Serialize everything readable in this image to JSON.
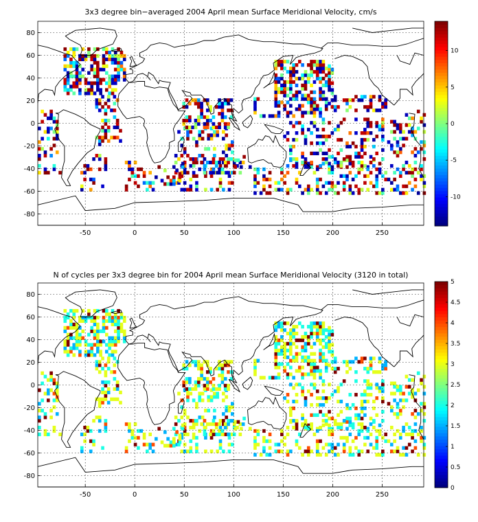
{
  "chart_data": [
    {
      "type": "heatmap",
      "title": "3x3 degree bin−averaged 2004 April mean Surface Meridional Velocity, cm/s",
      "x_ticks": [
        "-50",
        "0",
        "50",
        "100",
        "150",
        "200",
        "250"
      ],
      "y_ticks": [
        "80",
        "60",
        "40",
        "20",
        "0",
        "-20",
        "-40",
        "-60",
        "-80"
      ],
      "xlim": [
        -98,
        292
      ],
      "ylim": [
        -90,
        90
      ],
      "grid": true,
      "bin_size_deg": 3,
      "colorbar": {
        "range": [
          -14,
          14
        ],
        "ticks": [
          "10",
          "5",
          "0",
          "-5",
          "-10"
        ],
        "colormap": "jet"
      }
    },
    {
      "type": "heatmap",
      "title": "N of cycles per 3x3 degree bin for 2004 April mean Surface Meridional Velocity (3120 in total)",
      "x_ticks": [
        "-50",
        "0",
        "50",
        "100",
        "150",
        "200",
        "250"
      ],
      "y_ticks": [
        "80",
        "60",
        "40",
        "20",
        "0",
        "-20",
        "-40",
        "-60",
        "-80"
      ],
      "xlim": [
        -98,
        292
      ],
      "ylim": [
        -90,
        90
      ],
      "grid": true,
      "bin_size_deg": 3,
      "colorbar": {
        "range": [
          0,
          5
        ],
        "ticks": [
          "5",
          "4.5",
          "4",
          "3.5",
          "3",
          "2.5",
          "2",
          "1.5",
          "1",
          "0.5",
          "0"
        ],
        "colormap": "jet"
      }
    }
  ]
}
